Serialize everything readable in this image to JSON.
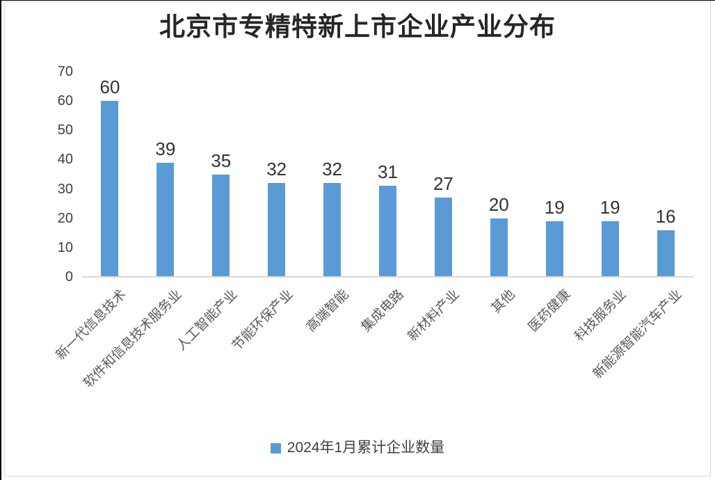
{
  "page": {
    "background": "#FFFFFF",
    "outer_edge_color": "#000000",
    "frame_border_color": "#D9D9D9"
  },
  "chart_data": {
    "type": "bar",
    "title": "北京市专精特新上市企业产业分布",
    "categories": [
      "新一代信息技术",
      "软件和信息技术服务业",
      "人工智能产业",
      "节能环保产业",
      "高端智能",
      "集成电路",
      "新材料产业",
      "其他",
      "医药健康",
      "科技服务业",
      "新能源智能汽车产业"
    ],
    "series": [
      {
        "name": "2024年1月累计企业数量",
        "values": [
          60,
          39,
          35,
          32,
          32,
          31,
          27,
          20,
          19,
          19,
          16
        ]
      }
    ],
    "xlabel": "",
    "ylabel": "",
    "ylim": [
      0,
      70
    ],
    "yticks": [
      0,
      10,
      20,
      30,
      40,
      50,
      60,
      70
    ],
    "grid": false,
    "data_labels": true,
    "legend_position": "bottom",
    "bar_color": "#5B9BD5",
    "axis_line_color": "#D9D9D9",
    "tick_label_color": "#404040",
    "category_label_color": "#595959",
    "data_label_color": "#333333",
    "title_color": "#262626",
    "x_labels_rotation_deg": 45
  }
}
